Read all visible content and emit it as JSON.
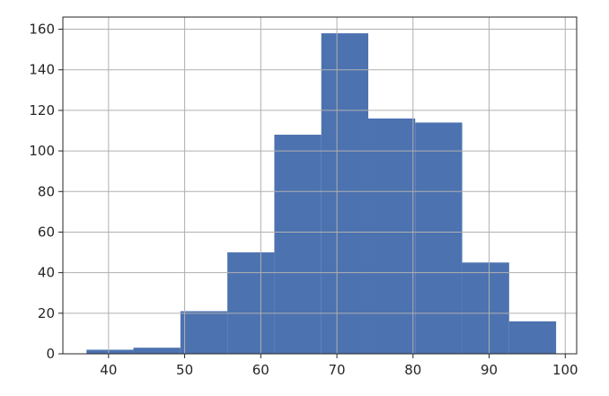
{
  "chart_data": {
    "type": "bar",
    "subtype": "histogram",
    "title": "",
    "xlabel": "",
    "ylabel": "",
    "bin_edges": [
      37.1,
      43.27,
      49.44,
      55.61,
      61.78,
      67.95,
      74.12,
      80.29,
      86.46,
      92.63,
      98.8
    ],
    "values": [
      2,
      3,
      21,
      50,
      108,
      158,
      116,
      114,
      45,
      16
    ],
    "xlim": [
      34,
      101.5
    ],
    "ylim": [
      0,
      166
    ],
    "xticks": [
      40,
      50,
      60,
      70,
      80,
      90,
      100
    ],
    "yticks": [
      0,
      20,
      40,
      60,
      80,
      100,
      120,
      140,
      160
    ],
    "grid": true,
    "legend": "none",
    "bar_color": "#4c72b0",
    "grid_color": "#b0b0b0"
  }
}
